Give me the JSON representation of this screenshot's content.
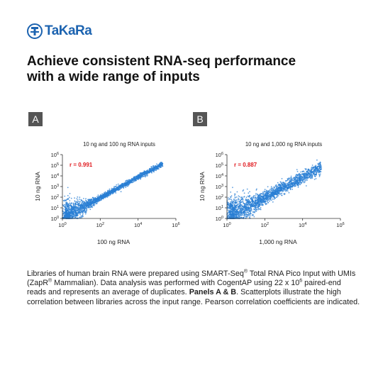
{
  "brand": {
    "logo_text": "TaKaRa",
    "accent_color": "#1c63b0"
  },
  "title_lines": [
    "Achieve consistent RNA-seq performance",
    "with a wide range of inputs"
  ],
  "chart_data": [
    {
      "type": "scatter",
      "panel_label": "A",
      "title": "10 ng and 100 ng RNA inputs",
      "xlabel": "100 ng RNA",
      "ylabel": "10 ng RNA",
      "x_scale": "log",
      "y_scale": "log",
      "xlim": [
        1,
        1000000
      ],
      "ylim": [
        1,
        1000000
      ],
      "xticks": [
        1,
        100,
        10000,
        1000000
      ],
      "xtick_labels": [
        "10^0",
        "10^2",
        "10^4",
        "10^6"
      ],
      "yticks": [
        1,
        10,
        100,
        1000,
        10000,
        100000,
        1000000
      ],
      "ytick_labels": [
        "10^0",
        "10^1",
        "10^2",
        "10^3",
        "10^4",
        "10^5",
        "10^6"
      ],
      "annotation": "r = 0.991",
      "annotation_color": "#e0191e",
      "point_color": "#2a7fd4",
      "correlation_r": 0.991,
      "grid": false
    },
    {
      "type": "scatter",
      "panel_label": "B",
      "title": "10 ng and 1,000 ng RNA inputs",
      "xlabel": "1,000 ng RNA",
      "ylabel": "10 ng RNA",
      "x_scale": "log",
      "y_scale": "log",
      "xlim": [
        1,
        1000000
      ],
      "ylim": [
        1,
        1000000
      ],
      "xticks": [
        1,
        100,
        10000,
        1000000
      ],
      "xtick_labels": [
        "10^0",
        "10^2",
        "10^4",
        "10^6"
      ],
      "yticks": [
        1,
        10,
        100,
        1000,
        10000,
        100000,
        1000000
      ],
      "ytick_labels": [
        "10^0",
        "10^1",
        "10^2",
        "10^3",
        "10^4",
        "10^5",
        "10^6"
      ],
      "annotation": "r = 0.887",
      "annotation_color": "#e0191e",
      "point_color": "#2a7fd4",
      "correlation_r": 0.887,
      "grid": false
    }
  ],
  "caption": {
    "p1": "Libraries of human brain RNA were prepared using SMART-Seq",
    "reg1": "®",
    "p2": " Total RNA Pico Input with UMIs (ZapR",
    "reg2": "®",
    "p3": " Mammalian). Data analysis was performed with CogentAP using 22 x 10",
    "exp": "6",
    "p4": " paired-end reads and represents an average of duplicates. ",
    "bold": "Panels A & B",
    "p5": ". Scatterplots illustrate the high correlation between libraries across the input range. Pearson correlation coefficients are indicated."
  }
}
